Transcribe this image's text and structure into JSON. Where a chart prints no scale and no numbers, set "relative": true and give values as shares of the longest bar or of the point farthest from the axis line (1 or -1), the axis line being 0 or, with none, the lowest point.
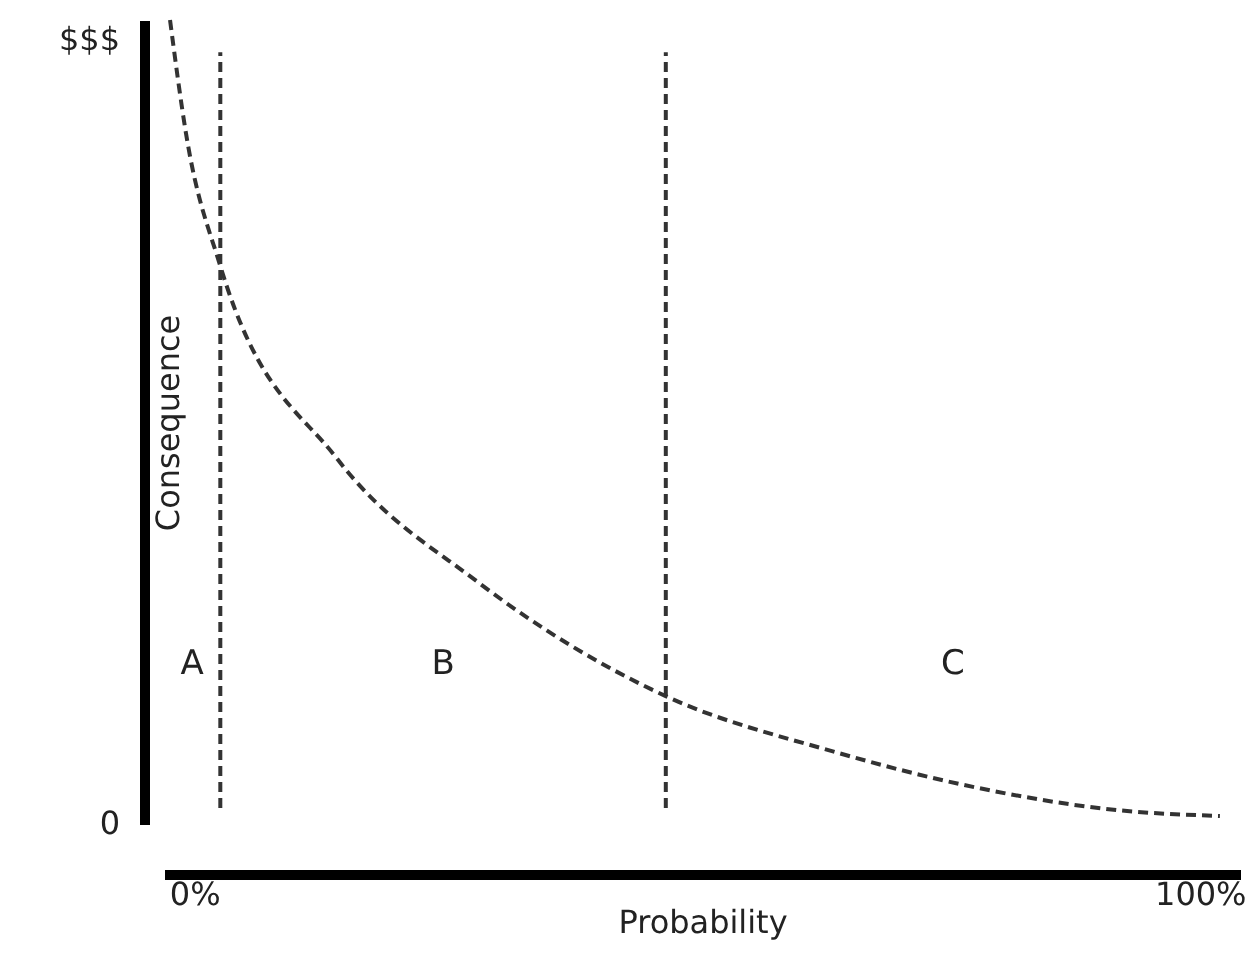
{
  "chart_data": {
    "type": "line",
    "xlabel": "Probability",
    "ylabel": "Consequence",
    "x": [
      -2.4,
      -0.8,
      2.6,
      14.3,
      28.2,
      46.9,
      63.6,
      77.9,
      92.0,
      102
    ],
    "series": [
      {
        "color": "#333333",
        "values": [
          1.0,
          0.858,
          0.694,
          0.453,
          0.301,
          0.159,
          0.09,
          0.045,
          0.017,
          0.01
        ]
      }
    ],
    "relative": true,
    "xlim": [
      -3,
      104
    ],
    "xticks": [
      {
        "value": 0,
        "label": "0%"
      },
      {
        "value": 100,
        "label": "100%"
      }
    ],
    "ref_lines": [
      {
        "axis": "x",
        "value": 2.6,
        "color": "#333333",
        "line_style": "dashed"
      },
      {
        "axis": "x",
        "value": 46.9,
        "color": "#333333",
        "line_style": "dashed"
      }
    ],
    "annotations": [
      "$$$",
      "0",
      "A",
      "B",
      "C"
    ],
    "line_style": "dashed",
    "marker": "none",
    "grid": false
  }
}
